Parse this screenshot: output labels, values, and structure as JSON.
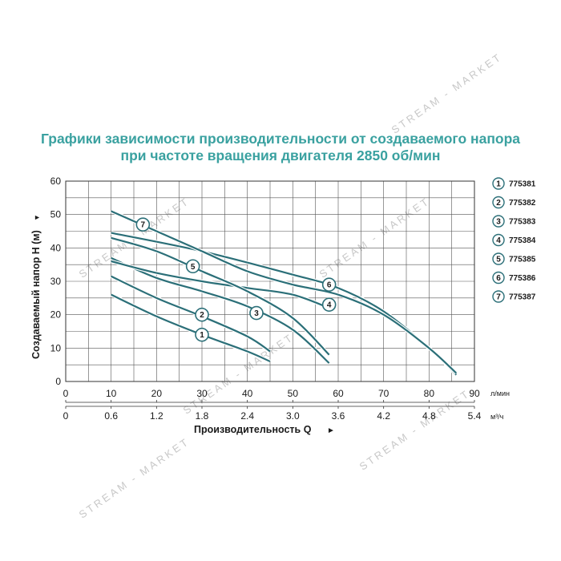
{
  "colors": {
    "title": "#3aa1a0",
    "curve": "#2b6f78",
    "curve_outline": "#ffffff",
    "badge_stroke": "#2b6f78",
    "grid": "#555555",
    "watermark": "#c8c8c8"
  },
  "watermark_text": "STREAM - MARKET",
  "chart_data": {
    "type": "line",
    "title_lines": [
      "Графики зависимости производительности от создаваемого напора",
      "при частоте вращения двигателя 2850 об/мин"
    ],
    "ylabel": "Создаваемый напор Н (м)",
    "ylabel_arrow": "▼",
    "xlabel": "Производительность Q",
    "xlabel_arrow": "►",
    "ylim": [
      0,
      60
    ],
    "y_ticks": [
      "0",
      "10",
      "20",
      "30",
      "40",
      "50",
      "60"
    ],
    "xlim": [
      0,
      90
    ],
    "x_ticks_lmin": [
      "0",
      "10",
      "20",
      "30",
      "40",
      "50",
      "60",
      "70",
      "80",
      "90"
    ],
    "x_ticks_m3h": [
      "0",
      "0.6",
      "1.2",
      "1.8",
      "2.4",
      "3.0",
      "3.6",
      "4.2",
      "4.8",
      "5.4"
    ],
    "unit_lmin": "л/мин",
    "unit_m3h": "м³/ч",
    "grid": true,
    "legend_position": "right",
    "series": [
      {
        "name": "775381",
        "badge": "1",
        "x": [
          10,
          20,
          30,
          40,
          45
        ],
        "y": [
          26,
          19.5,
          14,
          9,
          6
        ],
        "label_at": [
          30,
          14
        ]
      },
      {
        "name": "775382",
        "badge": "2",
        "x": [
          10,
          20,
          30,
          40,
          45
        ],
        "y": [
          31.5,
          25,
          19.5,
          13.5,
          9
        ],
        "label_at": [
          30,
          20
        ]
      },
      {
        "name": "775383",
        "badge": "3",
        "x": [
          10,
          20,
          30,
          40,
          50,
          58
        ],
        "y": [
          37,
          31,
          27,
          22.5,
          15.5,
          5.5
        ],
        "label_at": [
          42,
          20.5
        ]
      },
      {
        "name": "775384",
        "badge": "4",
        "x": [
          10,
          20,
          30,
          40,
          50,
          58
        ],
        "y": [
          36,
          32.5,
          30,
          28,
          26,
          22
        ],
        "label_at": [
          58,
          23
        ]
      },
      {
        "name": "775385",
        "badge": "5",
        "x": [
          10,
          20,
          30,
          40,
          50,
          58
        ],
        "y": [
          43,
          39,
          33,
          27,
          19,
          8
        ],
        "label_at": [
          28,
          34.5
        ]
      },
      {
        "name": "775386",
        "badge": "6",
        "x": [
          10,
          30,
          50,
          60,
          70,
          80,
          86
        ],
        "y": [
          44.5,
          39,
          32,
          28,
          21,
          10,
          2
        ],
        "label_at": [
          58,
          29
        ]
      },
      {
        "name": "775387",
        "badge": "7",
        "x": [
          10,
          20,
          30,
          40,
          50,
          60,
          70,
          80,
          86
        ],
        "y": [
          51,
          45,
          39,
          33,
          29,
          26,
          20,
          10,
          2.5
        ],
        "label_at": [
          17,
          47
        ]
      }
    ]
  }
}
